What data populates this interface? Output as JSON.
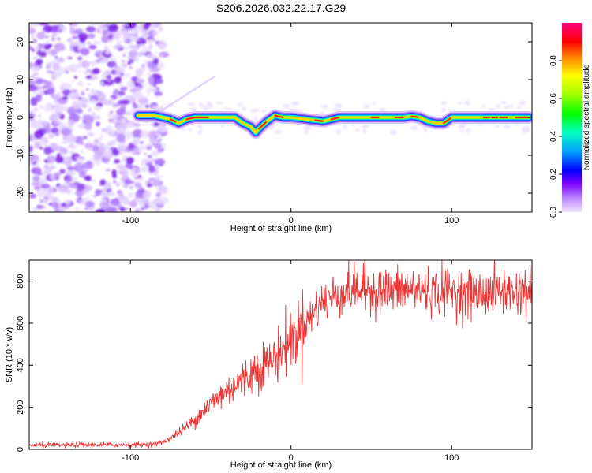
{
  "title": "S206.2026.032.22.17.G29",
  "chart_data": [
    {
      "type": "heatmap",
      "name": "spectrogram",
      "xlabel": "Height of straight line (km)",
      "ylabel": "Frequency (Hz)",
      "xlim": [
        -163,
        150
      ],
      "ylim": [
        -25,
        25
      ],
      "xticks": [
        -100,
        0,
        100
      ],
      "yticks": [
        -20,
        -10,
        0,
        10,
        20
      ],
      "noise_region_x": [
        -163,
        -82
      ],
      "ridge": {
        "x": [
          -95,
          -85,
          -80,
          -75,
          -70,
          -65,
          -60,
          -50,
          -40,
          -35,
          -30,
          -25,
          -22,
          -20,
          -15,
          -10,
          -5,
          0,
          10,
          20,
          30,
          40,
          50,
          60,
          70,
          75,
          80,
          85,
          90,
          95,
          100,
          110,
          120,
          130,
          140,
          148
        ],
        "y": [
          0.5,
          0.5,
          0,
          -0.5,
          -1.5,
          -0.5,
          0,
          0,
          0,
          0,
          -1.5,
          -2.5,
          -4,
          -3,
          -1,
          0.5,
          0,
          0,
          -0.5,
          -1,
          0,
          0,
          0,
          0,
          0,
          0.3,
          0,
          -1,
          -1.5,
          -1.5,
          0,
          0,
          0,
          0,
          0,
          0
        ]
      },
      "colorbar": {
        "label": "Normalized spectral amplitude",
        "range": [
          0,
          1
        ],
        "ticks": [
          "0.0",
          "0.2",
          "0.4",
          "0.6",
          "0.8"
        ],
        "tick_values": [
          0,
          0.2,
          0.4,
          0.6,
          0.8
        ],
        "colors": [
          "#e8d5ff",
          "#c39bff",
          "#7f00ff",
          "#0000ff",
          "#00b0ff",
          "#00ffc0",
          "#00ff00",
          "#a0ff00",
          "#ffff00",
          "#ff8000",
          "#ff0000",
          "#ff0080"
        ]
      }
    },
    {
      "type": "line",
      "name": "snr",
      "xlabel": "Height of straight line (km)",
      "ylabel": "SNR (10 * v/v)",
      "xlim": [
        -163,
        150
      ],
      "ylim": [
        0,
        900
      ],
      "xticks": [
        -100,
        0,
        100
      ],
      "yticks": [
        0,
        200,
        400,
        600,
        800
      ],
      "color": "#ee3333",
      "series": [
        {
          "name": "SNR",
          "x": [
            -163,
            -140,
            -120,
            -100,
            -85,
            -78,
            -72,
            -66,
            -60,
            -54,
            -48,
            -42,
            -36,
            -30,
            -24,
            -18,
            -12,
            -6,
            0,
            6,
            12,
            18,
            20,
            25,
            30,
            40,
            50,
            60,
            70,
            80,
            90,
            100,
            110,
            120,
            130,
            140,
            150
          ],
          "y": [
            20,
            20,
            22,
            22,
            24,
            40,
            70,
            100,
            140,
            190,
            230,
            270,
            300,
            330,
            370,
            400,
            420,
            470,
            520,
            580,
            630,
            690,
            700,
            720,
            740,
            760,
            760,
            750,
            760,
            760,
            750,
            750,
            740,
            740,
            750,
            750,
            760
          ]
        }
      ]
    }
  ]
}
